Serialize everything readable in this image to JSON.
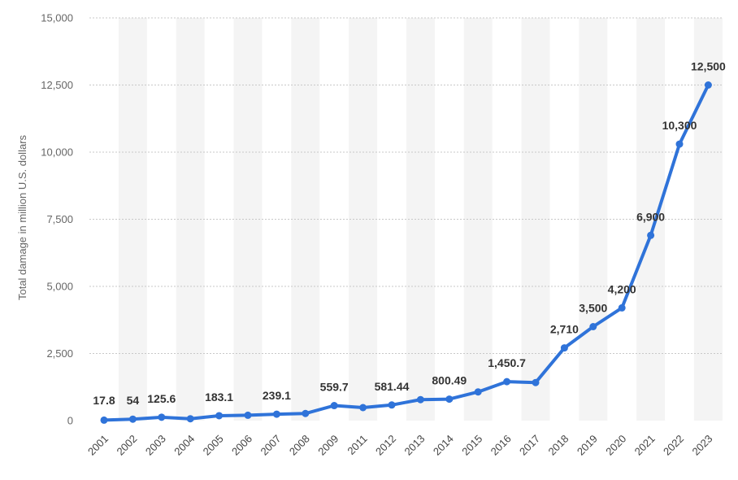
{
  "chart_data": {
    "type": "line",
    "title": "",
    "xlabel": "",
    "ylabel": "Total damage in million U.S. dollars",
    "ylim": [
      0,
      15000
    ],
    "yticks": [
      0,
      2500,
      5000,
      7500,
      10000,
      12500,
      15000
    ],
    "ytick_labels": [
      "0",
      "2,500",
      "5,000",
      "7,500",
      "10,000",
      "12,500",
      "15,000"
    ],
    "grid": true,
    "categories": [
      "2001",
      "2002",
      "2003",
      "2004",
      "2005",
      "2006",
      "2007",
      "2008",
      "2009",
      "2011",
      "2012",
      "2013",
      "2014",
      "2015",
      "2016",
      "2017",
      "2018",
      "2019",
      "2020",
      "2021",
      "2022",
      "2023"
    ],
    "series": [
      {
        "name": "Total damage",
        "color": "#2f73d9",
        "values": [
          17.8,
          54,
          125.6,
          70,
          183.1,
          200,
          239.1,
          265,
          559.7,
          485,
          581.44,
          781,
          800.49,
          1070,
          1450.7,
          1418,
          2710,
          3500,
          4200,
          6900,
          10300,
          12500
        ],
        "labels": [
          "17.8",
          "54",
          "125.6",
          "",
          "183.1",
          "",
          "239.1",
          "",
          "559.7",
          "",
          "581.44",
          "",
          "800.49",
          "",
          "1,450.7",
          "",
          "2,710",
          "3,500",
          "4,200",
          "6,900",
          "10,300",
          "12,500"
        ]
      }
    ]
  }
}
